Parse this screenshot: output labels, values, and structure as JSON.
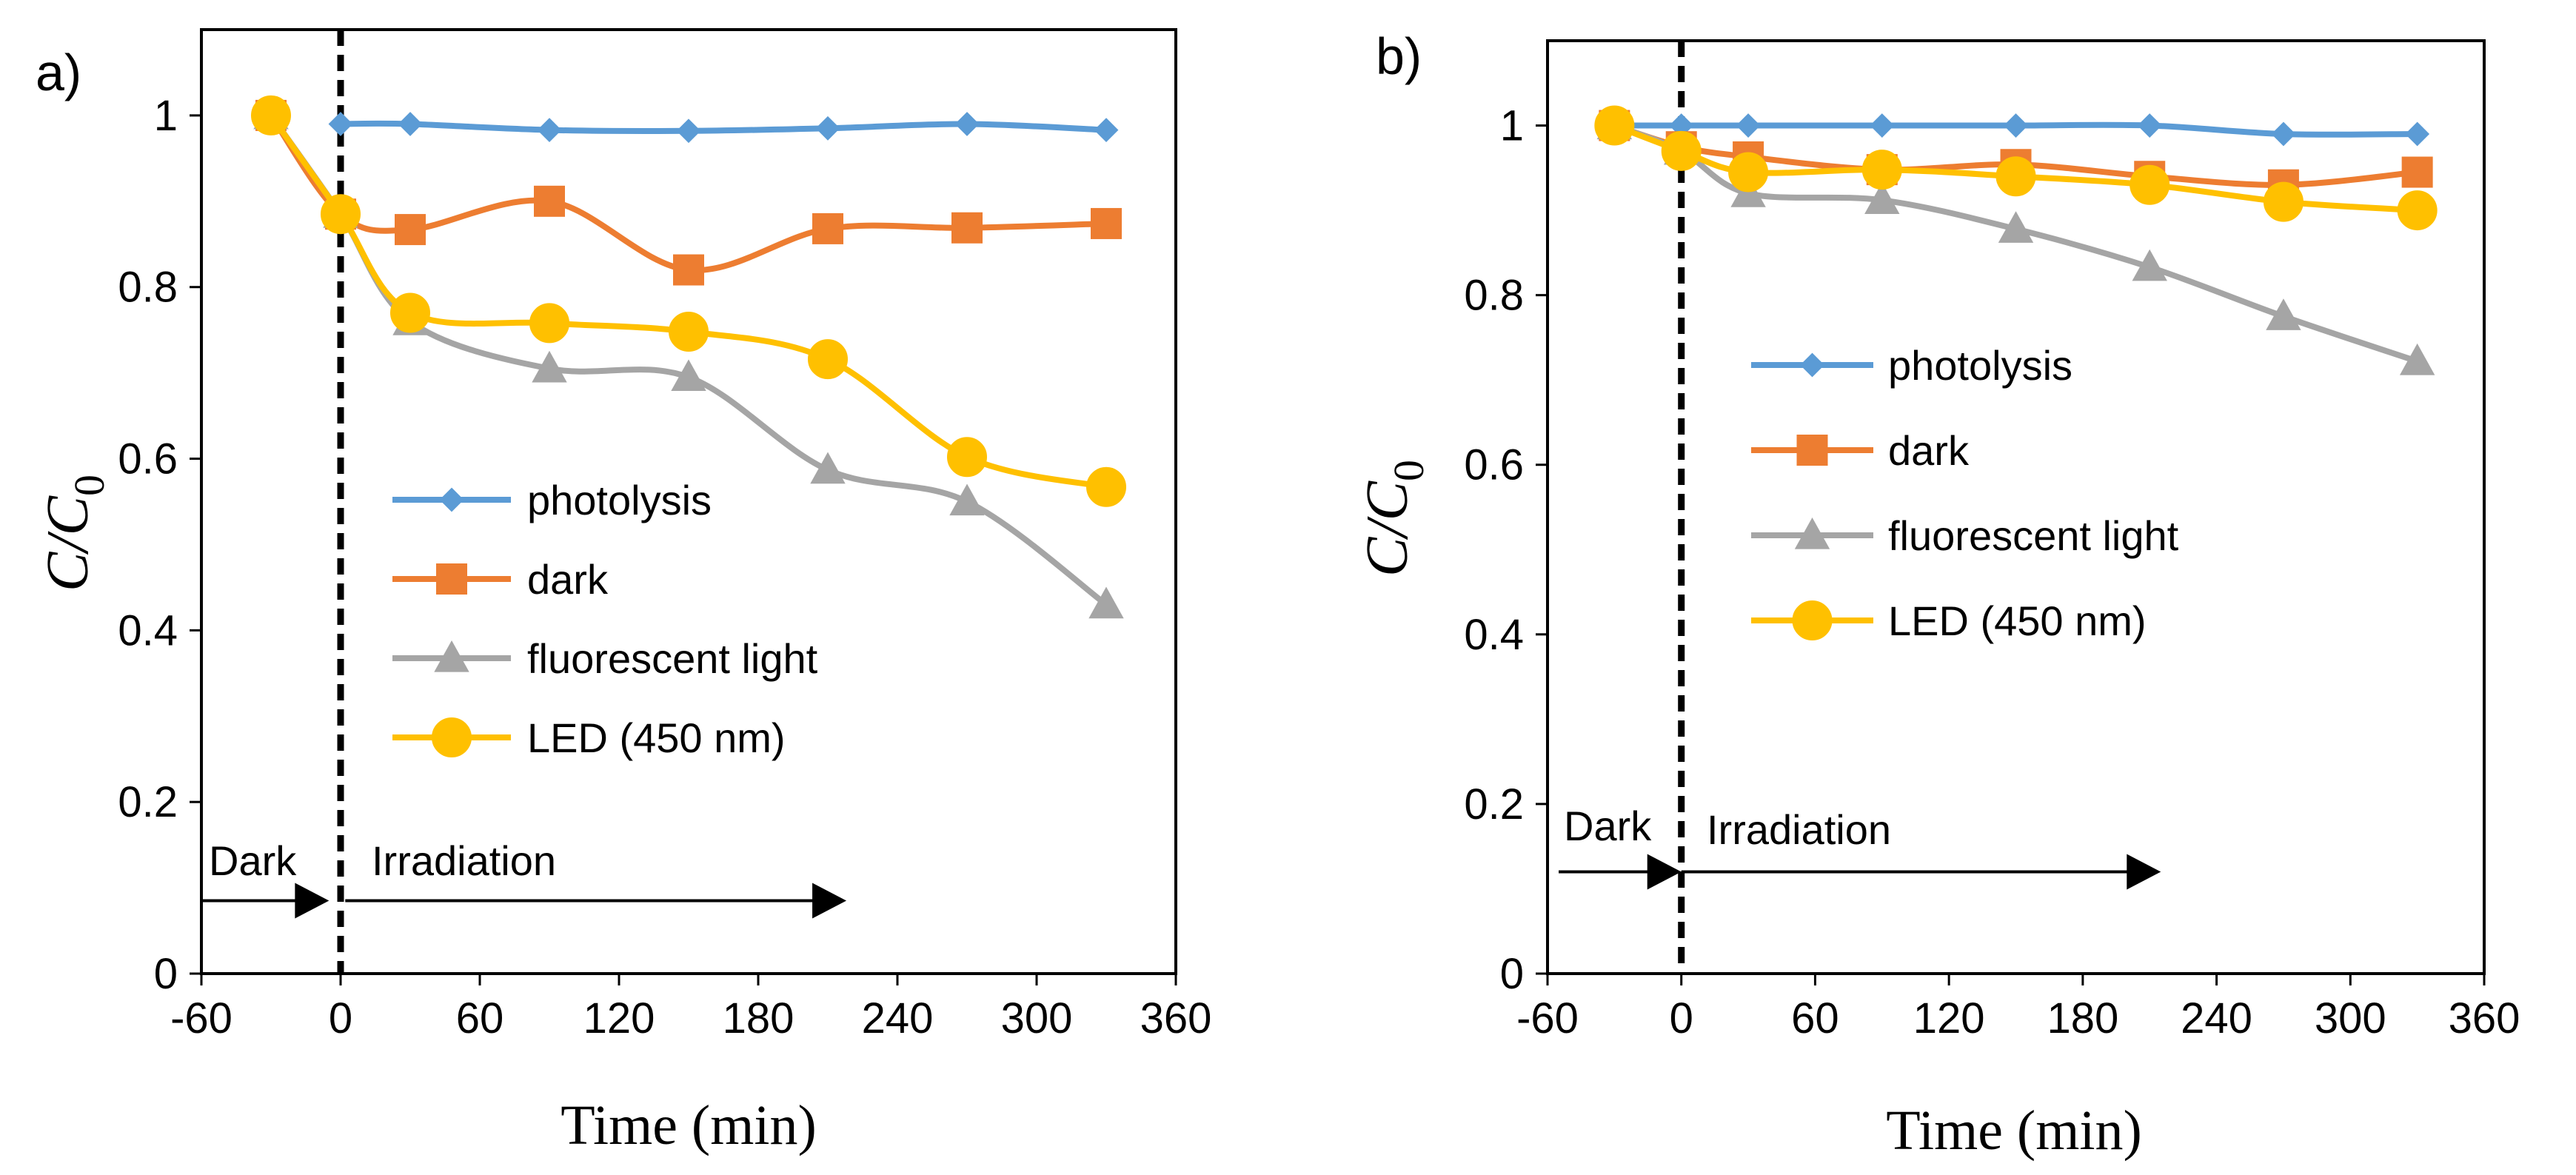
{
  "chart_data": [
    {
      "panel_label": "a)",
      "type": "line",
      "xlabel": "Time (min)",
      "ylabel_main": "C/C",
      "ylabel_sub": "0",
      "xlim": [
        -60,
        360
      ],
      "ylim": [
        0,
        1.1
      ],
      "xticks": [
        -60,
        0,
        60,
        120,
        180,
        240,
        300,
        360
      ],
      "yticks": [
        0,
        0.2,
        0.4,
        0.6,
        0.8,
        1
      ],
      "xtick_labels": [
        "-60",
        "0",
        "60",
        "120",
        "180",
        "240",
        "300",
        "360"
      ],
      "ytick_labels": [
        "0",
        "0.2",
        "0.4",
        "0.6",
        "0.8",
        "1"
      ],
      "legend_position": "center",
      "annotations": {
        "dark": "Dark",
        "irradiation": "Irradiation",
        "divider_x": 0,
        "dark_arrow_x": [
          -60,
          -5
        ],
        "irr_arrow_x": [
          2,
          218
        ],
        "arrow_y": 0.085
      },
      "series": [
        {
          "name": "photolysis",
          "color": "#5B9BD5",
          "marker": "diamond",
          "x": [
            0,
            30,
            90,
            150,
            210,
            270,
            330
          ],
          "y": [
            0.99,
            0.99,
            0.983,
            0.982,
            0.985,
            0.99,
            0.983
          ]
        },
        {
          "name": "dark",
          "color": "#ED7D31",
          "marker": "square",
          "x": [
            -30,
            0,
            30,
            90,
            150,
            210,
            270,
            330
          ],
          "y": [
            1.0,
            0.885,
            0.867,
            0.9,
            0.82,
            0.868,
            0.869,
            0.874
          ]
        },
        {
          "name": "fluorescent light",
          "color": "#A5A5A5",
          "marker": "triangle",
          "x": [
            -30,
            0,
            30,
            90,
            150,
            210,
            270,
            330
          ],
          "y": [
            1.0,
            0.885,
            0.76,
            0.705,
            0.695,
            0.587,
            0.55,
            0.43
          ]
        },
        {
          "name": "LED (450 nm)",
          "color": "#FFC000",
          "marker": "circle",
          "x": [
            -30,
            0,
            30,
            90,
            150,
            210,
            270,
            330
          ],
          "y": [
            1.0,
            0.885,
            0.77,
            0.758,
            0.748,
            0.716,
            0.602,
            0.567
          ]
        }
      ]
    },
    {
      "panel_label": "b)",
      "type": "line",
      "xlabel": "Time (min)",
      "ylabel_main": "C/C",
      "ylabel_sub": "0",
      "xlim": [
        -60,
        360
      ],
      "ylim": [
        0,
        1.1
      ],
      "xticks": [
        -60,
        0,
        60,
        120,
        180,
        240,
        300,
        360
      ],
      "yticks": [
        0,
        0.2,
        0.4,
        0.6,
        0.8,
        1
      ],
      "xtick_labels": [
        "-60",
        "0",
        "60",
        "120",
        "180",
        "240",
        "300",
        "360"
      ],
      "ytick_labels": [
        "0",
        "0.2",
        "0.4",
        "0.6",
        "0.8",
        "1"
      ],
      "legend_position": "center",
      "annotations": {
        "dark": "Dark",
        "irradiation": "Irradiation",
        "divider_x": 0,
        "dark_arrow_x": [
          -55,
          0
        ],
        "irr_arrow_x": [
          0,
          215
        ],
        "arrow_y": 0.12
      },
      "series": [
        {
          "name": "photolysis",
          "color": "#5B9BD5",
          "marker": "diamond",
          "x": [
            -30,
            0,
            30,
            90,
            150,
            210,
            270,
            330
          ],
          "y": [
            1.0,
            1.0,
            1.0,
            1.0,
            1.0,
            1.0,
            0.99,
            0.99
          ]
        },
        {
          "name": "dark",
          "color": "#ED7D31",
          "marker": "square",
          "x": [
            -30,
            0,
            30,
            90,
            150,
            210,
            270,
            330
          ],
          "y": [
            1.0,
            0.975,
            0.963,
            0.948,
            0.954,
            0.94,
            0.93,
            0.945
          ]
        },
        {
          "name": "fluorescent light",
          "color": "#A5A5A5",
          "marker": "triangle",
          "x": [
            -30,
            0,
            30,
            90,
            150,
            210,
            270,
            330
          ],
          "y": [
            1.0,
            0.97,
            0.92,
            0.912,
            0.878,
            0.833,
            0.775,
            0.722
          ]
        },
        {
          "name": "LED (450 nm)",
          "color": "#FFC000",
          "marker": "circle",
          "x": [
            -30,
            0,
            30,
            90,
            150,
            210,
            270,
            330
          ],
          "y": [
            1.0,
            0.97,
            0.945,
            0.948,
            0.94,
            0.93,
            0.91,
            0.9
          ]
        }
      ]
    }
  ]
}
